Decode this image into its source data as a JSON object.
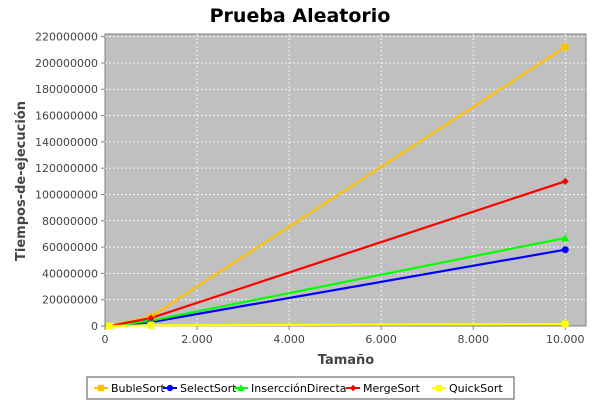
{
  "chart_data": {
    "type": "line",
    "title": "Prueba Aleatorio",
    "xlabel": "Tamaño",
    "ylabel": "Tiempos-de-ejecución",
    "xlim": [
      0,
      10450
    ],
    "ylim": [
      0,
      222000000
    ],
    "x_ticks": [
      0,
      2000,
      4000,
      6000,
      8000,
      10000
    ],
    "x_tick_labels": [
      "0",
      "2.000",
      "4.000",
      "6.000",
      "8.000",
      "10.000"
    ],
    "y_ticks": [
      0,
      20000000,
      40000000,
      60000000,
      80000000,
      100000000,
      120000000,
      140000000,
      160000000,
      180000000,
      200000000,
      220000000
    ],
    "y_tick_labels": [
      "0",
      "20000000",
      "40000000",
      "60000000",
      "80000000",
      "100000000",
      "120000000",
      "140000000",
      "160000000",
      "180000000",
      "200000000",
      "220000000"
    ],
    "grid": true,
    "plot_background": "#c0c0c0",
    "legend_position": "bottom",
    "x": [
      100,
      1000,
      10000
    ],
    "series": [
      {
        "name": "BubleSort",
        "color": "#ffc000",
        "marker": "square",
        "values": [
          0,
          7000000,
          212000000
        ]
      },
      {
        "name": "SelectSort",
        "color": "#0000ff",
        "marker": "circle",
        "values": [
          0,
          3000000,
          58000000
        ]
      },
      {
        "name": "InsercciónDirecta",
        "color": "#00ff00",
        "marker": "triangle",
        "values": [
          0,
          4000000,
          67000000
        ]
      },
      {
        "name": "MergeSort",
        "color": "#ff0000",
        "marker": "diamond",
        "values": [
          0,
          6000000,
          110000000
        ]
      },
      {
        "name": "QuickSort",
        "color": "#ffff00",
        "marker": "square",
        "values": [
          0,
          500000,
          1500000
        ]
      }
    ]
  }
}
